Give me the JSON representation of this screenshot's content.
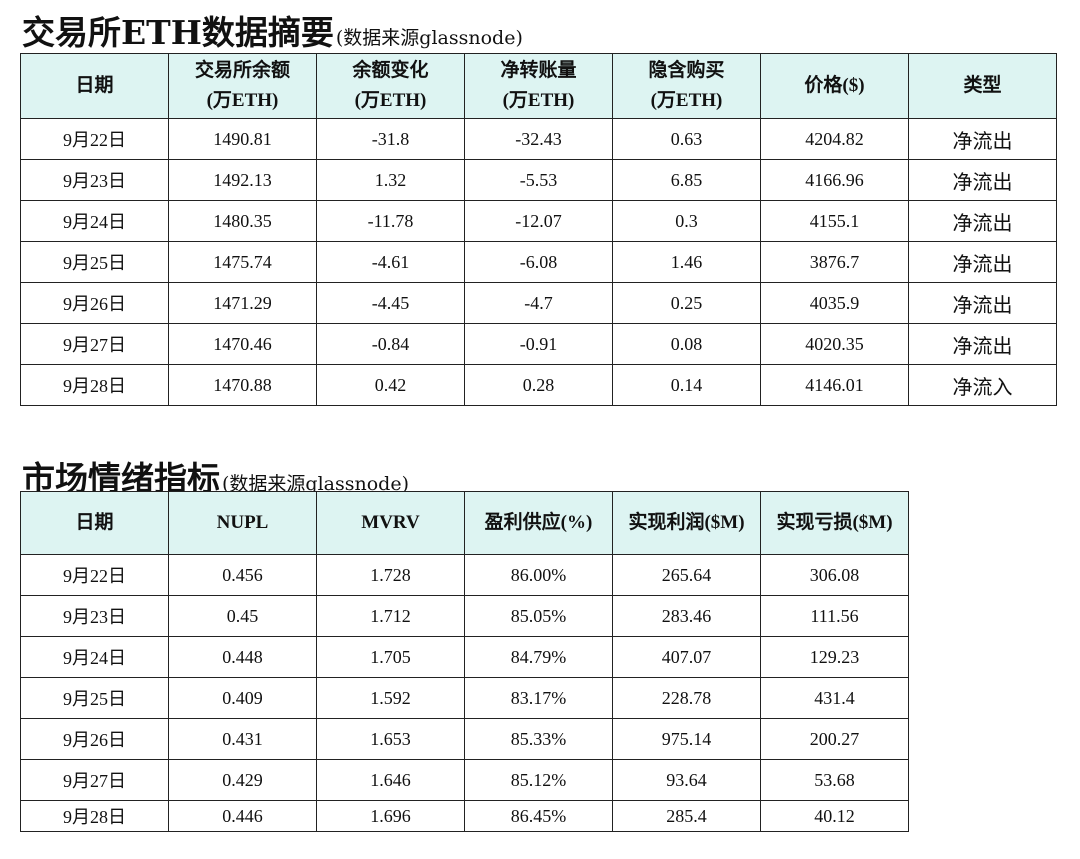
{
  "section1": {
    "title": "交易所ETH数据摘要",
    "source": "(数据来源glassnode)",
    "headers": [
      {
        "line1": "日期",
        "line2": ""
      },
      {
        "line1": "交易所余额",
        "line2": "(万ETH)"
      },
      {
        "line1": "余额变化",
        "line2": "(万ETH)"
      },
      {
        "line1": "净转账量",
        "line2": "(万ETH)"
      },
      {
        "line1": "隐含购买",
        "line2": "(万ETH)"
      },
      {
        "line1": "价格($)",
        "line2": ""
      },
      {
        "line1": "类型",
        "line2": ""
      }
    ],
    "rows": [
      [
        "9月22日",
        "1490.81",
        "-31.8",
        "-32.43",
        "0.63",
        "4204.82",
        "净流出"
      ],
      [
        "9月23日",
        "1492.13",
        "1.32",
        "-5.53",
        "6.85",
        "4166.96",
        "净流出"
      ],
      [
        "9月24日",
        "1480.35",
        "-11.78",
        "-12.07",
        "0.3",
        "4155.1",
        "净流出"
      ],
      [
        "9月25日",
        "1475.74",
        "-4.61",
        "-6.08",
        "1.46",
        "3876.7",
        "净流出"
      ],
      [
        "9月26日",
        "1471.29",
        "-4.45",
        "-4.7",
        "0.25",
        "4035.9",
        "净流出"
      ],
      [
        "9月27日",
        "1470.46",
        "-0.84",
        "-0.91",
        "0.08",
        "4020.35",
        "净流出"
      ],
      [
        "9月28日",
        "1470.88",
        "0.42",
        "0.28",
        "0.14",
        "4146.01",
        "净流入"
      ]
    ]
  },
  "section2": {
    "title": "市场情绪指标",
    "source": "(数据来源glassnode)",
    "headers": [
      "日期",
      "NUPL",
      "MVRV",
      "盈利供应(%)",
      "实现利润($M)",
      "实现亏损($M)"
    ],
    "rows": [
      [
        "9月22日",
        "0.456",
        "1.728",
        "86.00%",
        "265.64",
        "306.08"
      ],
      [
        "9月23日",
        "0.45",
        "1.712",
        "85.05%",
        "283.46",
        "111.56"
      ],
      [
        "9月24日",
        "0.448",
        "1.705",
        "84.79%",
        "407.07",
        "129.23"
      ],
      [
        "9月25日",
        "0.409",
        "1.592",
        "83.17%",
        "228.78",
        "431.4"
      ],
      [
        "9月26日",
        "0.431",
        "1.653",
        "85.33%",
        "975.14",
        "200.27"
      ],
      [
        "9月27日",
        "0.429",
        "1.646",
        "85.12%",
        "93.64",
        "53.68"
      ],
      [
        "9月28日",
        "0.446",
        "1.696",
        "86.45%",
        "285.4",
        "40.12"
      ]
    ]
  },
  "colors": {
    "header_bg": "#ddf4f2",
    "border": "#222222",
    "text": "#111111"
  }
}
